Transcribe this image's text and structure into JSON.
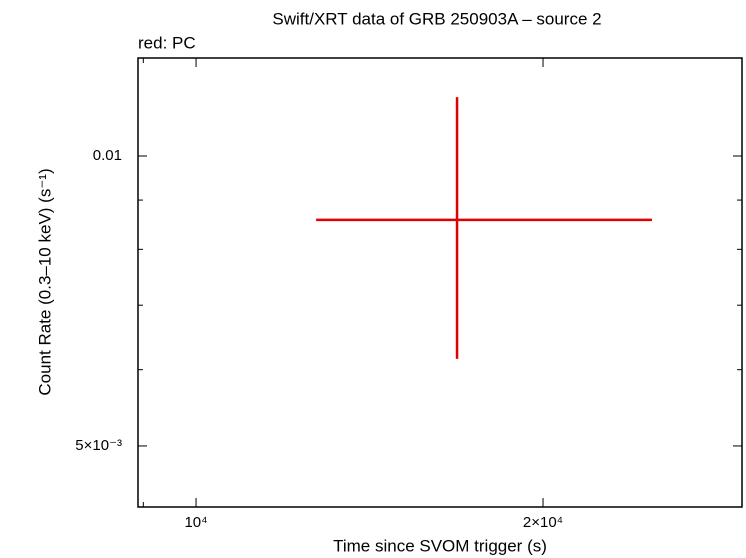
{
  "chart_data": {
    "type": "errorbar",
    "title": "Swift/XRT data of GRB 250903A – source 2",
    "subtitle": "red: PC",
    "xlabel": "Time since SVOM trigger (s)",
    "ylabel": "Count Rate (0.3–10 keV) (s⁻¹)",
    "xscale": "log",
    "yscale": "log",
    "xlim": [
      8905,
      29762
    ],
    "ylim": [
      0.004321,
      0.01264
    ],
    "xticks": [
      {
        "value": 10000,
        "label": "10⁴"
      },
      {
        "value": 20000,
        "label": "2×10⁴"
      }
    ],
    "xminor": [
      9000
    ],
    "yticks": [
      {
        "value": 0.005,
        "label": "5×10⁻³"
      },
      0.01
    ],
    "yminor": [
      0.006,
      0.007,
      0.008,
      0.009
    ],
    "series": [
      {
        "name": "PC",
        "color": "#e00000",
        "x": [
          16844
        ],
        "xerr_minus": [
          4133
        ],
        "xerr_plus": [
          8018
        ],
        "values": [
          0.008584
        ],
        "yerr_minus": [
          0.002427
        ],
        "yerr_plus": [
          0.002926
        ]
      }
    ]
  }
}
